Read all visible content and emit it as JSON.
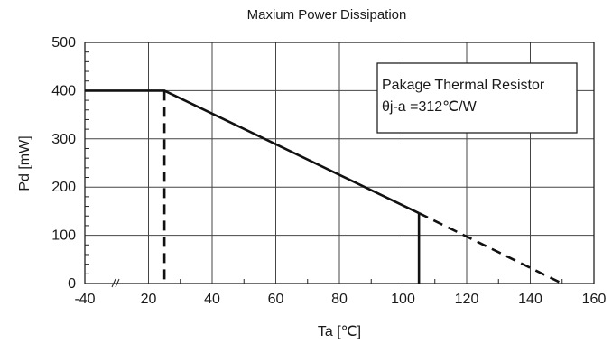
{
  "chart_data": {
    "type": "line",
    "title": "Maxium Power Dissipation",
    "xlabel": "Ta [℃]",
    "ylabel": "Pd [mW]",
    "x_ticks": [
      -40,
      20,
      40,
      60,
      80,
      100,
      120,
      140,
      160
    ],
    "y_ticks": [
      0,
      100,
      200,
      300,
      400,
      500
    ],
    "xlim": [
      0,
      160
    ],
    "ylim": [
      0,
      500
    ],
    "axis_break": "between -40 and 20",
    "grid": true,
    "series": [
      {
        "style": "solid",
        "x": [
          -40,
          25,
          105
        ],
        "y": [
          400,
          400,
          146
        ]
      },
      {
        "style": "solid",
        "x": [
          105,
          105
        ],
        "y": [
          146,
          0
        ]
      },
      {
        "style": "dashed",
        "x": [
          105,
          150
        ],
        "y": [
          146,
          0
        ]
      },
      {
        "style": "dashed",
        "x": [
          25,
          25
        ],
        "y": [
          400,
          0
        ]
      }
    ],
    "annotation": {
      "line1": "Pakage Thermal Resistor",
      "line2": "θj-a =312℃/W"
    }
  }
}
